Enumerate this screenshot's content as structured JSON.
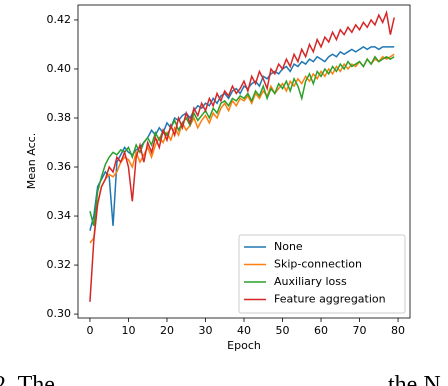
{
  "chart_data": {
    "type": "line",
    "xlabel": "Epoch",
    "ylabel": "Mean Acc.",
    "x": [
      0,
      1,
      2,
      3,
      4,
      5,
      6,
      7,
      8,
      9,
      10,
      11,
      12,
      13,
      14,
      15,
      16,
      17,
      18,
      19,
      20,
      21,
      22,
      23,
      24,
      25,
      26,
      27,
      28,
      29,
      30,
      31,
      32,
      33,
      34,
      35,
      36,
      37,
      38,
      39,
      40,
      41,
      42,
      43,
      44,
      45,
      46,
      47,
      48,
      49,
      50,
      51,
      52,
      53,
      54,
      55,
      56,
      57,
      58,
      59,
      60,
      61,
      62,
      63,
      64,
      65,
      66,
      67,
      68,
      69,
      70,
      71,
      72,
      73,
      74,
      75,
      76,
      77,
      78,
      79
    ],
    "series": [
      {
        "name": "None",
        "color": "#1f77b4",
        "values": [
          0.334,
          0.34,
          0.352,
          0.355,
          0.358,
          0.356,
          0.336,
          0.362,
          0.365,
          0.368,
          0.366,
          0.365,
          0.367,
          0.368,
          0.37,
          0.372,
          0.375,
          0.373,
          0.376,
          0.374,
          0.378,
          0.376,
          0.38,
          0.379,
          0.381,
          0.382,
          0.38,
          0.383,
          0.385,
          0.384,
          0.386,
          0.385,
          0.388,
          0.386,
          0.389,
          0.39,
          0.388,
          0.391,
          0.392,
          0.39,
          0.393,
          0.392,
          0.394,
          0.395,
          0.393,
          0.397,
          0.396,
          0.398,
          0.399,
          0.398,
          0.4,
          0.401,
          0.399,
          0.402,
          0.401,
          0.403,
          0.402,
          0.404,
          0.403,
          0.405,
          0.404,
          0.403,
          0.405,
          0.406,
          0.405,
          0.407,
          0.406,
          0.407,
          0.408,
          0.407,
          0.408,
          0.409,
          0.408,
          0.409,
          0.409,
          0.408,
          0.409,
          0.409,
          0.409,
          0.409
        ]
      },
      {
        "name": "Skip-connection",
        "color": "#ff7f0e",
        "values": [
          0.329,
          0.331,
          0.345,
          0.352,
          0.355,
          0.357,
          0.356,
          0.358,
          0.362,
          0.364,
          0.363,
          0.36,
          0.366,
          0.362,
          0.365,
          0.368,
          0.364,
          0.369,
          0.372,
          0.37,
          0.374,
          0.371,
          0.376,
          0.373,
          0.378,
          0.375,
          0.377,
          0.38,
          0.376,
          0.379,
          0.381,
          0.378,
          0.382,
          0.38,
          0.384,
          0.386,
          0.383,
          0.387,
          0.385,
          0.388,
          0.387,
          0.389,
          0.386,
          0.39,
          0.388,
          0.391,
          0.389,
          0.393,
          0.39,
          0.392,
          0.394,
          0.391,
          0.395,
          0.393,
          0.396,
          0.394,
          0.397,
          0.395,
          0.398,
          0.396,
          0.399,
          0.397,
          0.4,
          0.398,
          0.401,
          0.399,
          0.402,
          0.4,
          0.402,
          0.401,
          0.403,
          0.401,
          0.404,
          0.402,
          0.404,
          0.403,
          0.405,
          0.404,
          0.405,
          0.406
        ]
      },
      {
        "name": "Auxiliary loss",
        "color": "#2ca02c",
        "values": [
          0.342,
          0.336,
          0.35,
          0.356,
          0.361,
          0.364,
          0.366,
          0.365,
          0.367,
          0.366,
          0.368,
          0.364,
          0.369,
          0.366,
          0.37,
          0.372,
          0.369,
          0.374,
          0.371,
          0.375,
          0.373,
          0.376,
          0.379,
          0.375,
          0.378,
          0.38,
          0.377,
          0.382,
          0.379,
          0.381,
          0.383,
          0.38,
          0.384,
          0.382,
          0.386,
          0.387,
          0.385,
          0.388,
          0.387,
          0.389,
          0.388,
          0.39,
          0.387,
          0.391,
          0.389,
          0.393,
          0.388,
          0.392,
          0.39,
          0.394,
          0.392,
          0.395,
          0.391,
          0.396,
          0.393,
          0.388,
          0.395,
          0.398,
          0.394,
          0.399,
          0.397,
          0.4,
          0.398,
          0.401,
          0.399,
          0.402,
          0.4,
          0.403,
          0.401,
          0.402,
          0.403,
          0.401,
          0.404,
          0.402,
          0.405,
          0.403,
          0.404,
          0.405,
          0.404,
          0.405
        ]
      },
      {
        "name": "Feature aggregation",
        "color": "#d62728",
        "values": [
          0.305,
          0.33,
          0.345,
          0.352,
          0.355,
          0.36,
          0.358,
          0.364,
          0.362,
          0.366,
          0.36,
          0.346,
          0.364,
          0.369,
          0.362,
          0.37,
          0.366,
          0.372,
          0.368,
          0.375,
          0.371,
          0.377,
          0.373,
          0.38,
          0.376,
          0.382,
          0.378,
          0.384,
          0.381,
          0.386,
          0.383,
          0.388,
          0.385,
          0.39,
          0.387,
          0.391,
          0.389,
          0.393,
          0.39,
          0.392,
          0.395,
          0.391,
          0.397,
          0.394,
          0.399,
          0.396,
          0.392,
          0.4,
          0.398,
          0.402,
          0.4,
          0.404,
          0.401,
          0.406,
          0.403,
          0.408,
          0.405,
          0.41,
          0.407,
          0.412,
          0.409,
          0.413,
          0.411,
          0.415,
          0.412,
          0.416,
          0.414,
          0.417,
          0.415,
          0.418,
          0.416,
          0.419,
          0.417,
          0.42,
          0.418,
          0.422,
          0.419,
          0.423,
          0.414,
          0.421
        ]
      }
    ],
    "xlim": [
      -3.1,
      83.1
    ],
    "ylim": [
      0.2984,
      0.4261
    ],
    "xticks": [
      0,
      10,
      20,
      30,
      40,
      50,
      60,
      70,
      80
    ],
    "yticks": [
      {
        "value": 0.3,
        "label": "0.30"
      },
      0.32,
      0.34,
      0.36,
      0.38,
      {
        "value": 0.4,
        "label": "0.40"
      },
      0.42
    ],
    "legend": "lower right",
    "caption": [
      "2.  The",
      "the N"
    ]
  }
}
